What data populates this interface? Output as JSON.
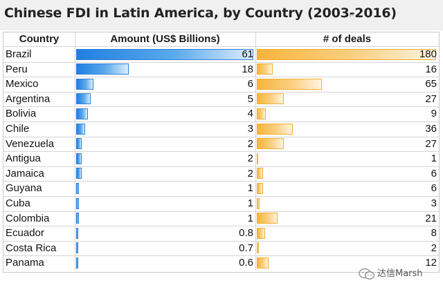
{
  "chart_data": {
    "type": "table",
    "title": "Chinese FDI in Latin America, by Country (2003-2016)",
    "columns": [
      "Country",
      "Amount (US$ Billions)",
      "# of deals"
    ],
    "categories": [
      "Brazil",
      "Peru",
      "Mexico",
      "Argentina",
      "Bolivia",
      "Chile",
      "Venezuela",
      "Antigua",
      "Jamaica",
      "Guyana",
      "Cuba",
      "Colombia",
      "Ecuador",
      "Costa Rica",
      "Panama"
    ],
    "series": [
      {
        "name": "Amount (US$ Billions)",
        "values": [
          61,
          18,
          6,
          5,
          4,
          3,
          2,
          2,
          2,
          1,
          1,
          1,
          0.8,
          0.7,
          0.6
        ],
        "labels": [
          "61",
          "18",
          "6",
          "5",
          "4",
          "3",
          "2",
          "2",
          "2",
          "1",
          "1",
          "1",
          "0.8",
          "0.7",
          "0.6"
        ],
        "color": "#2f7fd6",
        "max": 61
      },
      {
        "name": "# of deals",
        "values": [
          180,
          16,
          65,
          27,
          9,
          36,
          27,
          1,
          6,
          6,
          3,
          21,
          8,
          2,
          12
        ],
        "labels": [
          "180",
          "16",
          "65",
          "27",
          "9",
          "36",
          "27",
          "1",
          "6",
          "6",
          "3",
          "21",
          "8",
          "2",
          "12"
        ],
        "color": "#f7b43c",
        "max": 180
      }
    ]
  },
  "watermark": {
    "text": "达信Marsh",
    "icon": "wechat-icon"
  }
}
